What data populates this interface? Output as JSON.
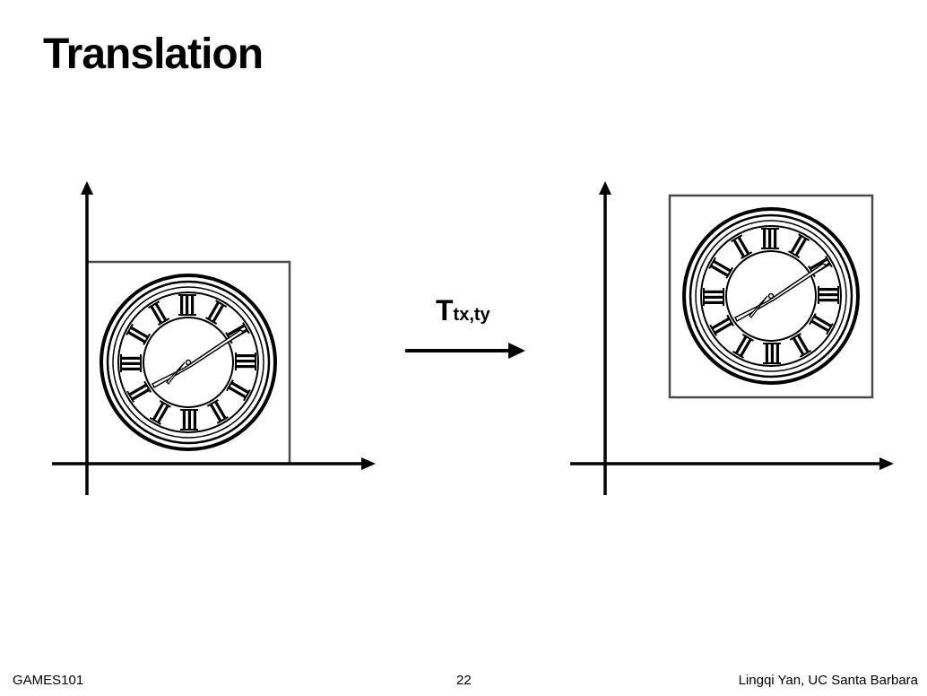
{
  "slide": {
    "title": "Translation",
    "transform_symbol": "T",
    "transform_subscript": "tx,ty"
  },
  "footer": {
    "left": "GAMES101",
    "page_number": "22",
    "right": "Lingqi Yan, UC Santa Barbara"
  },
  "colors": {
    "background": "#ffffff",
    "ink": "#000000",
    "frame": "#4a4a4a",
    "dial_face": "#ffffff"
  },
  "icons": {
    "clock": "clock-icon",
    "arrow": "arrow-right-icon"
  }
}
